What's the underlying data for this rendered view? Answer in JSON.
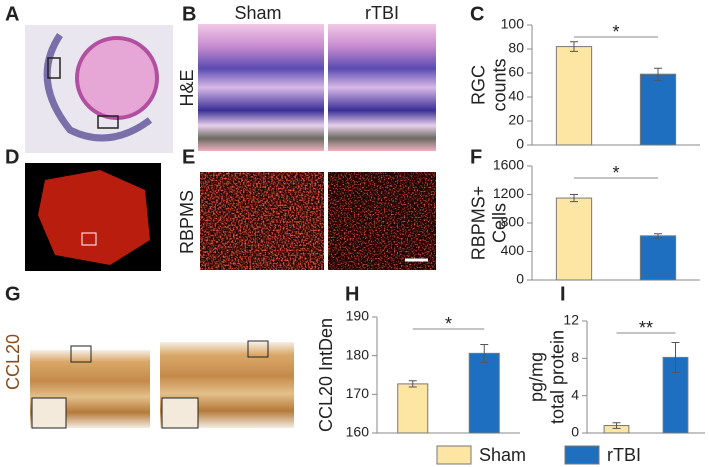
{
  "panel_labels": [
    "A",
    "B",
    "C",
    "D",
    "E",
    "F",
    "G",
    "H",
    "I"
  ],
  "image_labels": {
    "sham": "Sham",
    "rtbi": "rTBI",
    "he": "H&E",
    "rbpms": "RBPMS",
    "ccl20": "CCL20"
  },
  "legend": [
    {
      "name": "Sham",
      "color": "#fde6a3"
    },
    {
      "name": "rTBI",
      "color": "#1f6fc0"
    }
  ],
  "chart_data": [
    {
      "type": "bar",
      "ylabel": [
        "RGC",
        "counts"
      ],
      "values": [
        82,
        59
      ],
      "errors": [
        4,
        5
      ],
      "annotation": "*",
      "ylim": [
        0,
        100
      ],
      "yticks": [
        0,
        20,
        40,
        60,
        80,
        100
      ]
    },
    {
      "type": "bar",
      "ylabel": [
        "RBPMS+",
        "Cells"
      ],
      "values": [
        1150,
        620
      ],
      "errors": [
        50,
        30
      ],
      "annotation": "*",
      "ylim": [
        0,
        1600
      ],
      "yticks": [
        0,
        400,
        800,
        1200,
        1600
      ]
    },
    {
      "type": "bar",
      "ylabel": [
        "CCL20 IntDen"
      ],
      "values": [
        172.7,
        180.6
      ],
      "errors": [
        0.8,
        2.3
      ],
      "annotation": "*",
      "ylim": [
        160,
        190
      ],
      "yticks": [
        160,
        170,
        180,
        190
      ]
    },
    {
      "type": "bar",
      "ylabel": [
        "pg/mg",
        "total protein"
      ],
      "values": [
        0.8,
        8.1
      ],
      "errors": [
        0.3,
        1.6
      ],
      "annotation": "**",
      "ylim": [
        0,
        12
      ],
      "yticks": [
        0,
        4,
        8,
        12
      ]
    }
  ]
}
